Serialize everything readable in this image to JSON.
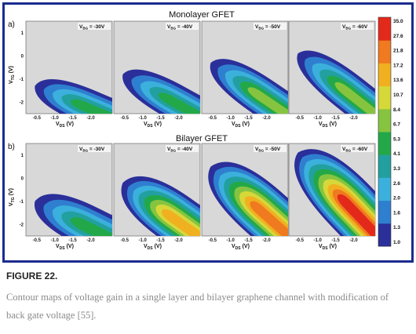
{
  "figure": {
    "title_top": "Monolayer GFET",
    "title_bottom": "Bilayer GFET",
    "letter_top": "a)",
    "letter_bottom": "b)",
    "x_axis_label": "V",
    "x_axis_sub": "DS",
    "x_axis_unit": "(V)",
    "y_axis_label": "V",
    "y_axis_sub": "TG",
    "y_axis_unit": "(V)",
    "vbg_label": "V",
    "vbg_sub": "BG",
    "colors": [
      "#2a2f9a",
      "#2f7fd0",
      "#3cb0dc",
      "#22a0a0",
      "#22a848",
      "#86c440",
      "#d6d83a",
      "#f0b020",
      "#ef7a1f",
      "#e32a1a"
    ]
  },
  "chart_data": {
    "type": "heatmap",
    "x_ticks": [
      "-0.5",
      "-1.0",
      "-1.5",
      "-2.0"
    ],
    "y_ticks": [
      "1",
      "0",
      "-1",
      "-2"
    ],
    "xlim": [
      -0.2,
      -2.6
    ],
    "ylim": [
      -2.5,
      1.5
    ],
    "colorbar_ticks": [
      "35.0",
      "27.6",
      "21.8",
      "17.2",
      "13.6",
      "10.7",
      "8.4",
      "6.7",
      "5.3",
      "4.1",
      "3.3",
      "2.6",
      "2.0",
      "1.6",
      "1.3",
      "1.0"
    ],
    "rows": [
      {
        "name": "Monolayer GFET",
        "panels": [
          {
            "vbg_value": "= -30V",
            "tip_y": -1.3,
            "max_level": 4
          },
          {
            "vbg_value": "= -40V",
            "tip_y": -0.8,
            "max_level": 4
          },
          {
            "vbg_value": "= -50V",
            "tip_y": -0.3,
            "max_level": 5
          },
          {
            "vbg_value": "= -60V",
            "tip_y": 0.1,
            "max_level": 5
          }
        ]
      },
      {
        "name": "Bilayer GFET",
        "panels": [
          {
            "vbg_value": "= -30V",
            "tip_y": -1.0,
            "max_level": 4
          },
          {
            "vbg_value": "= -40V",
            "tip_y": -0.2,
            "max_level": 7
          },
          {
            "vbg_value": "= -50V",
            "tip_y": 0.5,
            "max_level": 8
          },
          {
            "vbg_value": "= -60V",
            "tip_y": 1.1,
            "max_level": 9
          }
        ]
      }
    ]
  },
  "caption": {
    "label": "FIGURE 22.",
    "text": "Contour maps of voltage gain in a single layer and bilayer graphene channel with modification of back gate voltage [55]."
  }
}
